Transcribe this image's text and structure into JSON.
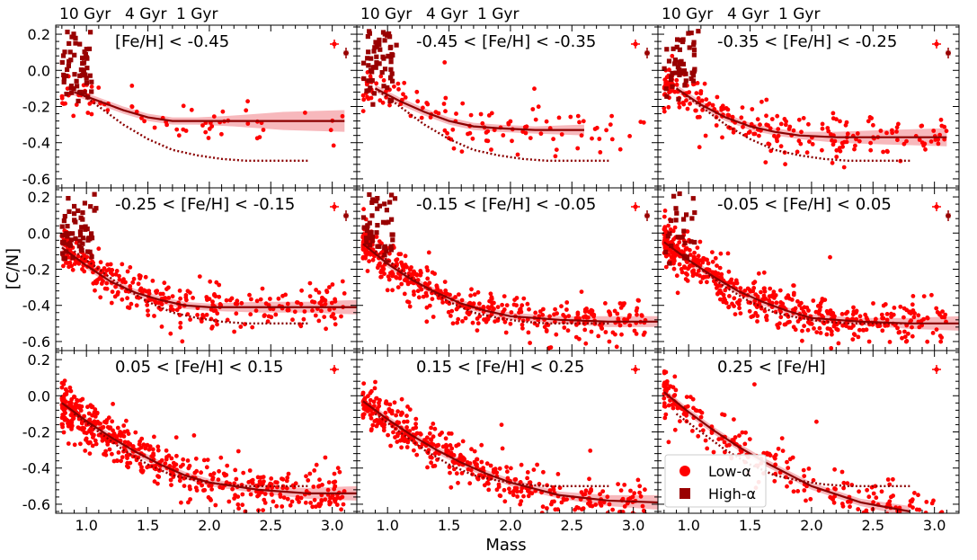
{
  "chart_data": {
    "type": "scatter",
    "grid": "3x3 shared axes",
    "xlabel": "Mass",
    "ylabel": "[C/N]",
    "xlim": [
      0.75,
      3.2
    ],
    "ylim": [
      -0.65,
      0.25
    ],
    "xticks": [
      "1.0",
      "1.5",
      "2.0",
      "2.5",
      "3.0"
    ],
    "yticks": [
      "0.2",
      "0.0",
      "-0.2",
      "-0.4",
      "-0.6"
    ],
    "age_labels": [
      "10 Gyr",
      "4 Gyr",
      "1 Gyr"
    ],
    "legend": {
      "position": "lower-left of bottom-right panel",
      "entries": [
        {
          "label": "Low-α",
          "marker": "circle",
          "color": "#ff0000"
        },
        {
          "label": "High-α",
          "marker": "square",
          "color": "#990000"
        }
      ]
    },
    "colors": {
      "low_alpha": "#ff0000",
      "high_alpha": "#990000",
      "fit_line": "#8b0000",
      "band": "#f4a0a6",
      "reference_dotted": "#8b0000"
    },
    "reference_curve": {
      "x": [
        0.9,
        1.1,
        1.3,
        1.5,
        1.7,
        1.9,
        2.1,
        2.3,
        2.5,
        2.8
      ],
      "y": [
        -0.1,
        -0.2,
        -0.3,
        -0.38,
        -0.44,
        -0.47,
        -0.49,
        -0.5,
        -0.5,
        -0.5
      ]
    },
    "panels": [
      {
        "label": "[Fe/H] < -0.45",
        "fit": {
          "x": [
            0.9,
            1.1,
            1.3,
            1.5,
            1.7,
            1.9,
            2.2,
            2.6,
            3.1
          ],
          "y": [
            -0.12,
            -0.17,
            -0.22,
            -0.26,
            -0.28,
            -0.28,
            -0.28,
            -0.28,
            -0.28
          ]
        },
        "band_halfwidth": [
          0.02,
          0.02,
          0.02,
          0.02,
          0.02,
          0.02,
          0.03,
          0.05,
          0.06
        ],
        "n_low": 70,
        "n_high": 55,
        "low_center": -0.2,
        "high_count_region": "mass 0.8-1.1",
        "has_errbar_high": true
      },
      {
        "label": "-0.45 < [Fe/H] < -0.35",
        "fit": {
          "x": [
            0.9,
            1.1,
            1.3,
            1.5,
            1.7,
            1.9,
            2.2,
            2.6
          ],
          "y": [
            -0.1,
            -0.17,
            -0.23,
            -0.28,
            -0.31,
            -0.32,
            -0.33,
            -0.33
          ]
        },
        "band_halfwidth": [
          0.02,
          0.02,
          0.02,
          0.02,
          0.02,
          0.02,
          0.02,
          0.03
        ],
        "n_low": 120,
        "n_high": 60,
        "low_center": -0.22,
        "has_errbar_high": true
      },
      {
        "label": "-0.35 < [Fe/H] < -0.25",
        "fit": {
          "x": [
            0.9,
            1.1,
            1.3,
            1.5,
            1.7,
            1.9,
            2.2,
            2.6,
            3.1
          ],
          "y": [
            -0.1,
            -0.19,
            -0.26,
            -0.31,
            -0.34,
            -0.36,
            -0.37,
            -0.37,
            -0.37
          ]
        },
        "band_halfwidth": [
          0.02,
          0.02,
          0.02,
          0.02,
          0.02,
          0.02,
          0.03,
          0.04,
          0.05
        ],
        "n_low": 230,
        "n_high": 50,
        "low_center": -0.25,
        "has_errbar_high": true
      },
      {
        "label": "-0.25 < [Fe/H] < -0.15",
        "fit": {
          "x": [
            0.8,
            1.0,
            1.2,
            1.4,
            1.6,
            1.8,
            2.0,
            2.4,
            2.8,
            3.2
          ],
          "y": [
            -0.08,
            -0.18,
            -0.27,
            -0.33,
            -0.37,
            -0.4,
            -0.41,
            -0.41,
            -0.41,
            -0.41
          ]
        },
        "band_halfwidth": [
          0.02,
          0.02,
          0.02,
          0.02,
          0.02,
          0.02,
          0.02,
          0.03,
          0.03,
          0.04
        ],
        "n_low": 330,
        "n_high": 60,
        "low_center": -0.28,
        "has_errbar_high": true
      },
      {
        "label": "-0.15 < [Fe/H] < -0.05",
        "fit": {
          "x": [
            0.8,
            1.0,
            1.2,
            1.4,
            1.6,
            1.8,
            2.0,
            2.4,
            2.8,
            3.2
          ],
          "y": [
            -0.06,
            -0.17,
            -0.26,
            -0.33,
            -0.39,
            -0.43,
            -0.46,
            -0.48,
            -0.49,
            -0.49
          ]
        },
        "band_halfwidth": [
          0.02,
          0.02,
          0.02,
          0.02,
          0.02,
          0.02,
          0.02,
          0.02,
          0.03,
          0.03
        ],
        "n_low": 420,
        "n_high": 45,
        "low_center": -0.3,
        "has_errbar_high": true
      },
      {
        "label": "-0.05 < [Fe/H] < 0.05",
        "fit": {
          "x": [
            0.8,
            1.0,
            1.2,
            1.4,
            1.6,
            1.8,
            2.0,
            2.4,
            2.8,
            3.2
          ],
          "y": [
            -0.05,
            -0.15,
            -0.24,
            -0.32,
            -0.38,
            -0.43,
            -0.47,
            -0.49,
            -0.5,
            -0.5
          ]
        },
        "band_halfwidth": [
          0.02,
          0.02,
          0.02,
          0.02,
          0.02,
          0.02,
          0.02,
          0.02,
          0.03,
          0.04
        ],
        "n_low": 520,
        "n_high": 25,
        "low_center": -0.32,
        "has_errbar_high": true
      },
      {
        "label": "0.05 < [Fe/H] < 0.15",
        "fit": {
          "x": [
            0.8,
            1.0,
            1.2,
            1.4,
            1.6,
            1.8,
            2.0,
            2.4,
            2.8,
            3.2
          ],
          "y": [
            -0.04,
            -0.14,
            -0.23,
            -0.31,
            -0.38,
            -0.44,
            -0.48,
            -0.52,
            -0.54,
            -0.54
          ]
        },
        "band_halfwidth": [
          0.02,
          0.02,
          0.02,
          0.02,
          0.02,
          0.02,
          0.02,
          0.02,
          0.03,
          0.04
        ],
        "n_low": 520,
        "n_high": 0,
        "low_center": -0.32,
        "has_errbar_high": false
      },
      {
        "label": "0.15 < [Fe/H] < 0.25",
        "fit": {
          "x": [
            0.8,
            1.0,
            1.2,
            1.4,
            1.6,
            1.8,
            2.0,
            2.4,
            2.8,
            3.2
          ],
          "y": [
            -0.03,
            -0.13,
            -0.22,
            -0.3,
            -0.37,
            -0.43,
            -0.48,
            -0.55,
            -0.58,
            -0.59
          ]
        },
        "band_halfwidth": [
          0.02,
          0.02,
          0.02,
          0.02,
          0.02,
          0.02,
          0.02,
          0.02,
          0.03,
          0.04
        ],
        "n_low": 420,
        "n_high": 0,
        "low_center": -0.32,
        "has_errbar_high": false
      },
      {
        "label": "0.25 < [Fe/H]",
        "fit": {
          "x": [
            0.8,
            1.0,
            1.2,
            1.4,
            1.6,
            1.8,
            2.0,
            2.4,
            2.8
          ],
          "y": [
            0.02,
            -0.09,
            -0.19,
            -0.28,
            -0.36,
            -0.43,
            -0.5,
            -0.59,
            -0.64
          ]
        },
        "band_halfwidth": [
          0.02,
          0.02,
          0.02,
          0.02,
          0.02,
          0.02,
          0.02,
          0.02,
          0.03
        ],
        "n_low": 230,
        "n_high": 0,
        "low_center": -0.25,
        "has_errbar_high": false
      }
    ]
  }
}
